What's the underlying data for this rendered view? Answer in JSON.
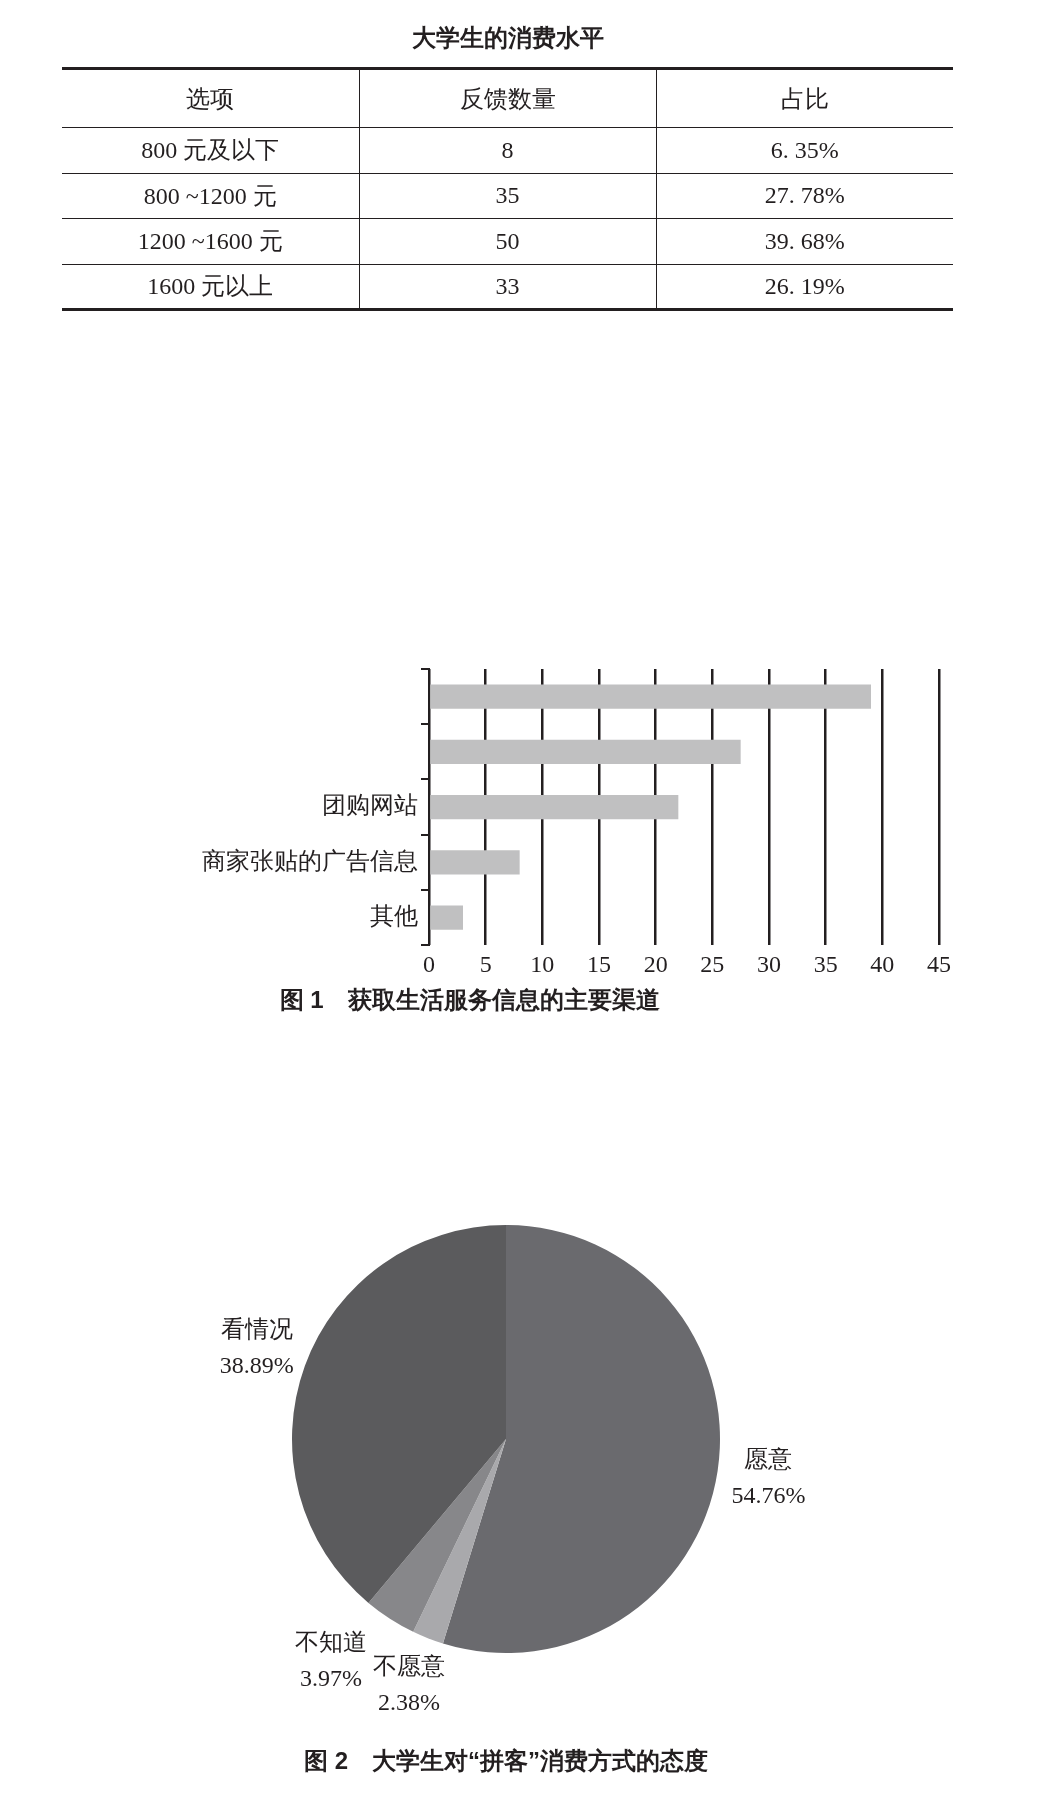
{
  "chart_data": [
    {
      "type": "other",
      "title": "大学生的消费水平",
      "categories": [
        "选项",
        "反馈数量",
        "占比"
      ],
      "annotations": [
        "800 元及以下",
        "8",
        "6. 35%",
        "800 ~1200 元",
        "35",
        "27. 78%",
        "1200 ~1600 元",
        "50",
        "39. 68%",
        "1600 元以上",
        "33",
        "26. 19%"
      ]
    },
    {
      "type": "bar",
      "orientation": "horizontal",
      "title": "图 1　获取生活服务信息的主要渠道",
      "categories": [
        null,
        null,
        "团购网站",
        "商家张贴的广告信息",
        "其他"
      ],
      "values": [
        39,
        27.5,
        22,
        8,
        3
      ],
      "color": "#c0c0c1",
      "xlim": [
        0,
        45
      ],
      "xticks": [
        0,
        5,
        10,
        15,
        20,
        25,
        30,
        35,
        40,
        45
      ],
      "grid": "x"
    },
    {
      "type": "pie",
      "title": "图 2　大学生对“拼客”消费方式的态度",
      "categories": [
        "愿意",
        "不愿意",
        "不知道",
        "看情况"
      ],
      "values": [
        54.76,
        2.38,
        3.97,
        38.89
      ],
      "colors": [
        "#6a6a6e",
        "#a9a9ac",
        "#87878a",
        "#5b5b5d"
      ],
      "value_labels": [
        "54.76%",
        "2.38%",
        "3.97%",
        "38.89%"
      ]
    }
  ]
}
